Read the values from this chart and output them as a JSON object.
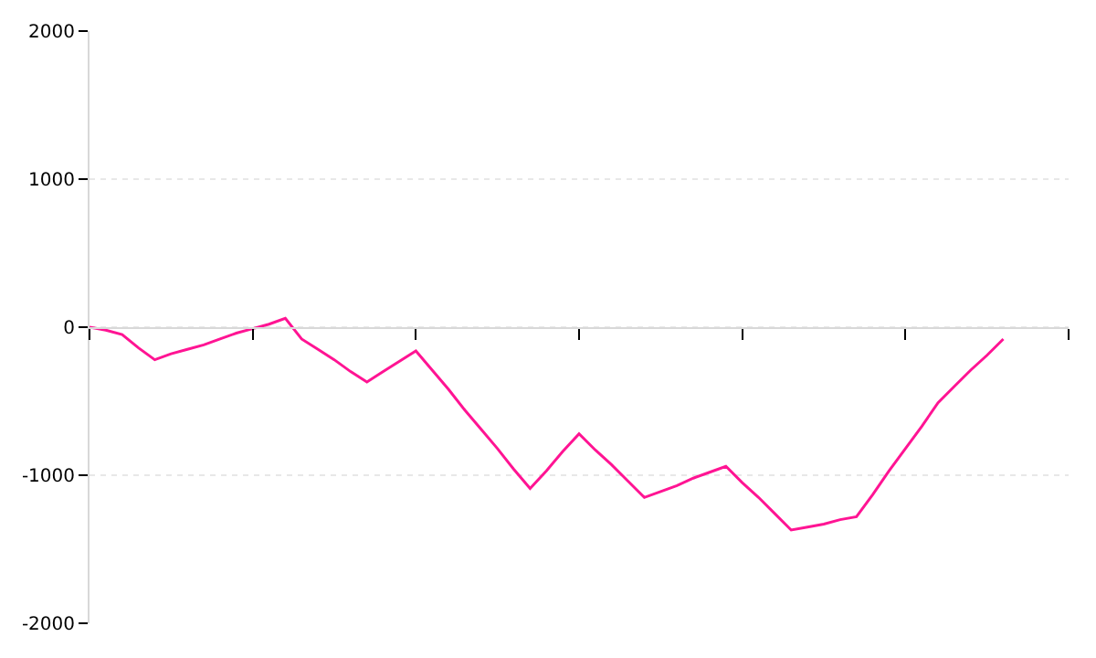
{
  "chart_data": {
    "type": "line",
    "categories": [
      null,
      null,
      null,
      null,
      null,
      null,
      null,
      null,
      null,
      null,
      null,
      null,
      null,
      null,
      null,
      null,
      null,
      null,
      null,
      null,
      null,
      null,
      null,
      null,
      null,
      null,
      null,
      null,
      null,
      null,
      null,
      null,
      null,
      null,
      null,
      null,
      null,
      null,
      null,
      null,
      null,
      null,
      null,
      null,
      null,
      null,
      null,
      null,
      null,
      null,
      null,
      null,
      null,
      null,
      null,
      null,
      null,
      null,
      null,
      null,
      null
    ],
    "series": [
      {
        "color": "#ff1493",
        "values": [
          0,
          -20,
          -50,
          -140,
          -220,
          -180,
          -150,
          -120,
          -80,
          -40,
          -10,
          20,
          60,
          -80,
          -150,
          -220,
          -300,
          -370,
          -300,
          -230,
          -160,
          -290,
          -420,
          -560,
          -690,
          -820,
          -960,
          -1090,
          -970,
          -840,
          -720,
          -830,
          -930,
          -1040,
          -1150,
          -1110,
          -1070,
          -1020,
          -980,
          -940,
          -1050,
          -1150,
          -1260,
          -1370,
          -1350,
          -1330,
          -1300,
          -1280,
          -1130,
          -970,
          -820,
          -670,
          -510,
          -400,
          -290,
          -190,
          -80,
          null,
          null,
          null,
          null
        ]
      }
    ],
    "ylim": [
      -2000,
      2000
    ],
    "yticks": [
      -2000,
      -1000,
      0,
      1000,
      2000
    ],
    "tick_labels": "y",
    "grid": "y",
    "marker": "none",
    "line_style": "solid"
  }
}
